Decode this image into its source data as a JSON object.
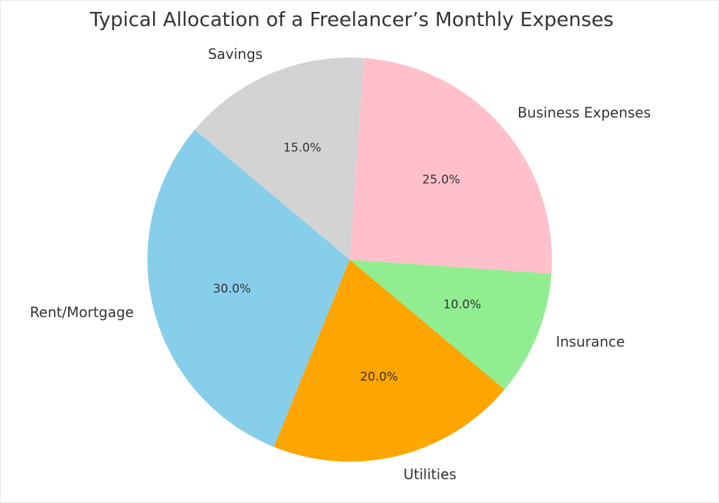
{
  "chart_data": {
    "type": "pie",
    "title": "Typical Allocation of a Freelancer’s Monthly Expenses",
    "labels": [
      "Rent/Mortgage",
      "Utilities",
      "Insurance",
      "Business Expenses",
      "Savings"
    ],
    "values": [
      30.0,
      20.0,
      10.0,
      25.0,
      15.0
    ],
    "percent_labels": [
      "30.0%",
      "20.0%",
      "10.0%",
      "25.0%",
      "15.0%"
    ],
    "colors": [
      "#87CEEB",
      "#FFA500",
      "#90EE90",
      "#FFC0CB",
      "#D3D3D3"
    ],
    "start_angle_deg": 140,
    "direction": "counterclockwise"
  }
}
